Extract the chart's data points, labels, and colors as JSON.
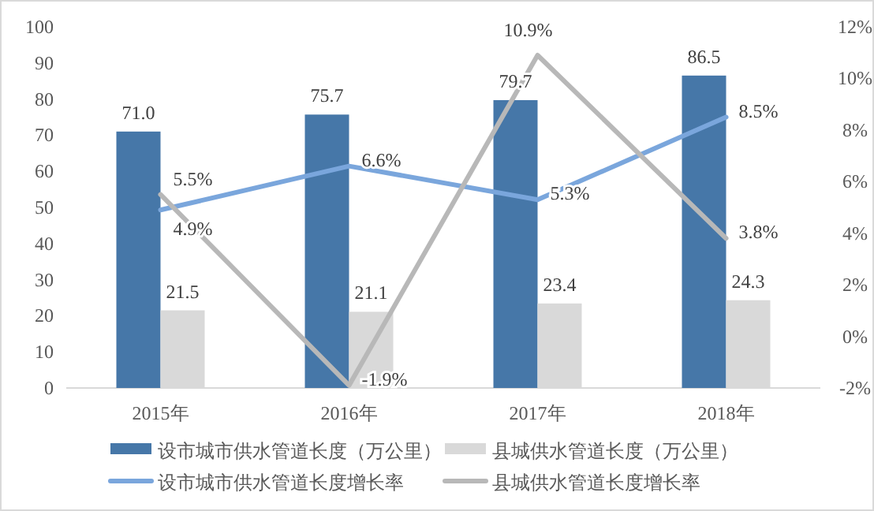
{
  "chart_data": {
    "type": "bar",
    "categories": [
      "2015年",
      "2016年",
      "2017年",
      "2018年"
    ],
    "series": [
      {
        "name": "设市城市供水管道长度（万公里）",
        "type": "bar",
        "color": "#4677a8",
        "values": [
          71.0,
          75.7,
          79.7,
          86.5
        ],
        "value_labels": [
          "71.0",
          "75.7",
          "79.7",
          "86.5"
        ]
      },
      {
        "name": "县城供水管道长度（万公里）",
        "type": "bar",
        "color": "#d9d9d9",
        "values": [
          21.5,
          21.1,
          23.4,
          24.3
        ],
        "value_labels": [
          "21.5",
          "21.1",
          "23.4",
          "24.3"
        ]
      },
      {
        "name": "设市城市供水管道长度增长率",
        "type": "line",
        "axis": "y2",
        "color": "#7aa6dc",
        "values": [
          4.9,
          6.6,
          5.3,
          8.5
        ],
        "value_labels": [
          "4.9%",
          "6.6%",
          "5.3%",
          "8.5%"
        ]
      },
      {
        "name": "县城供水管道长度增长率",
        "type": "line",
        "axis": "y2",
        "color": "#b8b8b8",
        "values": [
          5.5,
          -1.9,
          10.9,
          3.8
        ],
        "value_labels": [
          "5.5%",
          "-1.9%",
          "10.9%",
          "3.8%"
        ]
      }
    ],
    "ylim": [
      0,
      100
    ],
    "yticks": [
      0,
      10,
      20,
      30,
      40,
      50,
      60,
      70,
      80,
      90,
      100
    ],
    "y2lim": [
      -2,
      12
    ],
    "y2ticks": [
      {
        "value": -2,
        "label": "-2%"
      },
      {
        "value": 0,
        "label": "0%"
      },
      {
        "value": 2,
        "label": "2%"
      },
      {
        "value": 4,
        "label": "4%"
      },
      {
        "value": 6,
        "label": "6%"
      },
      {
        "value": 8,
        "label": "8%"
      },
      {
        "value": 10,
        "label": "10%"
      },
      {
        "value": 12,
        "label": "12%"
      }
    ],
    "grid": false,
    "legend": "bottom",
    "line_style": "solid",
    "marker": "none"
  }
}
